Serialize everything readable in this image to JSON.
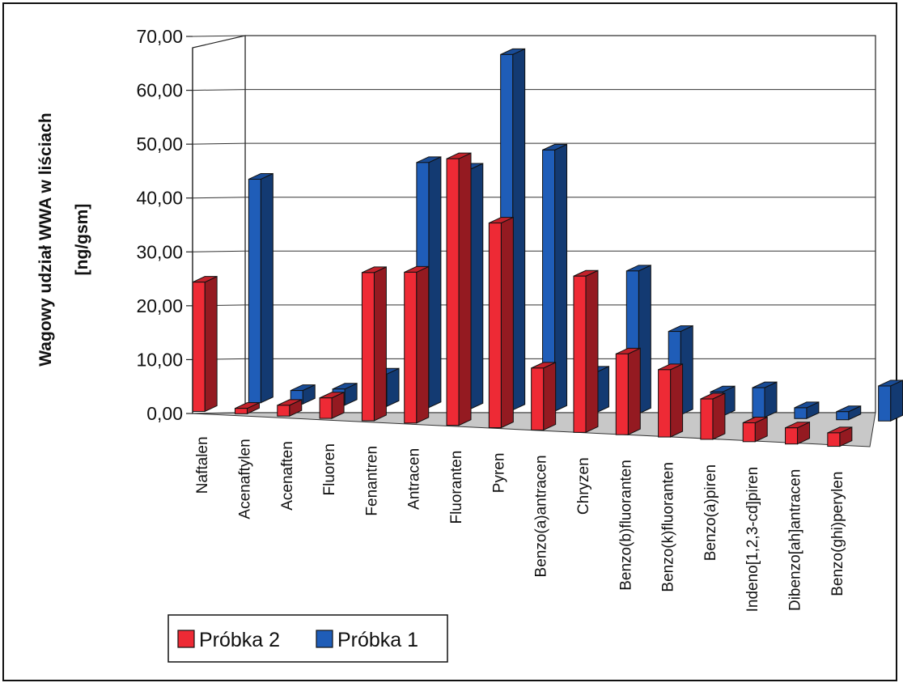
{
  "chart_data": {
    "type": "bar",
    "subtype": "3d-clustered-column",
    "ylabel": "Wagowy udział WWA w liściach [ng/gsm]",
    "ylim": [
      0,
      70
    ],
    "yticks": [
      "0,00",
      "10,00",
      "20,00",
      "30,00",
      "40,00",
      "50,00",
      "60,00",
      "70,00"
    ],
    "grid": true,
    "legend_position": "bottom-left",
    "categories": [
      "Naftalen",
      "Acenaftylen",
      "Acenaften",
      "Fluoren",
      "Fenantren",
      "Antracen",
      "Fluoranten",
      "Pyren",
      "Benzo(a)antracen",
      "Chryzen",
      "Benzo(b)fluoranten",
      "Benzo(k)fluoranten",
      "Benzo(a)piren",
      "Indeno[1,2,3-cd]piren",
      "Dibenzo[ah]antracen",
      "Benzo(ghi)perylen"
    ],
    "series": [
      {
        "name": "Próbka 2",
        "color": "#ee2a35",
        "values": [
          24.0,
          1.0,
          2.0,
          3.8,
          27.5,
          28.0,
          49.5,
          38.0,
          11.5,
          29.0,
          15.0,
          12.5,
          7.5,
          3.5,
          3.0,
          2.5
        ]
      },
      {
        "name": "Próbka 1",
        "color": "#1f5db8",
        "values": [
          41.5,
          2.5,
          3.0,
          6.0,
          45.5,
          44.5,
          66.0,
          48.5,
          7.5,
          26.5,
          15.5,
          4.5,
          5.5,
          2.0,
          1.5,
          6.5
        ]
      }
    ],
    "legend": [
      "Próbka 2",
      "Próbka 1"
    ]
  }
}
